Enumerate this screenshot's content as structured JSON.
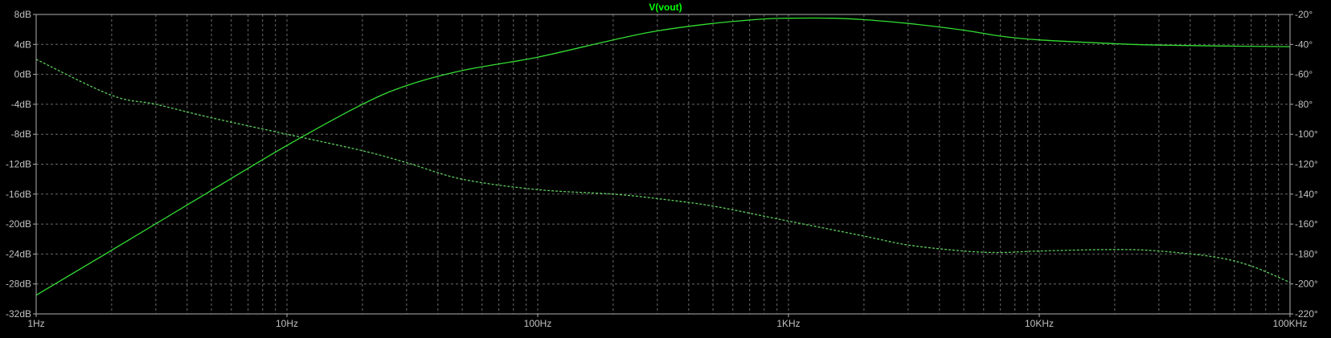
{
  "chart_data": {
    "type": "line",
    "title": "V(vout)",
    "xscale": "log",
    "xlim": [
      1,
      100000
    ],
    "x_ticks": [
      1,
      10,
      100,
      1000,
      10000,
      100000
    ],
    "x_tick_labels": [
      "1Hz",
      "10Hz",
      "100Hz",
      "1KHz",
      "10KHz",
      "100KHz"
    ],
    "y_left": {
      "lim": [
        -32,
        8
      ],
      "ticks": [
        8,
        4,
        0,
        -4,
        -8,
        -12,
        -16,
        -20,
        -24,
        -28,
        -32
      ],
      "tick_labels": [
        "8dB",
        "4dB",
        "0dB",
        "-4dB",
        "-8dB",
        "-12dB",
        "-16dB",
        "-20dB",
        "-24dB",
        "-28dB",
        "-32dB"
      ]
    },
    "y_right": {
      "lim": [
        -220,
        -20
      ],
      "ticks": [
        -20,
        -40,
        -60,
        -80,
        -100,
        -120,
        -140,
        -160,
        -180,
        -200,
        -220
      ],
      "tick_labels": [
        "-20°",
        "-40°",
        "-60°",
        "-80°",
        "-100°",
        "-120°",
        "-140°",
        "-160°",
        "-180°",
        "-200°",
        "-220°"
      ]
    },
    "grid": true,
    "series": [
      {
        "name": "V(vout)",
        "axis": "left",
        "style": "solid",
        "x": [
          1,
          2,
          5,
          10,
          20,
          30,
          50,
          100,
          200,
          300,
          500,
          800,
          1000,
          1500,
          2000,
          3000,
          5000,
          7000,
          10000,
          20000,
          30000,
          50000,
          100000
        ],
        "y": [
          -29.5,
          -23.5,
          -15.5,
          -9.5,
          -4.0,
          -1.5,
          0.5,
          2.3,
          4.6,
          5.8,
          6.8,
          7.4,
          7.5,
          7.5,
          7.3,
          6.8,
          5.9,
          5.1,
          4.6,
          4.1,
          3.9,
          3.8,
          3.7
        ]
      },
      {
        "name": "phase",
        "axis": "right",
        "style": "dashed",
        "x": [
          1,
          2,
          3,
          5,
          10,
          20,
          30,
          50,
          100,
          200,
          300,
          500,
          1000,
          2000,
          3000,
          5000,
          7000,
          10000,
          20000,
          30000,
          50000,
          70000,
          100000
        ],
        "y": [
          -50,
          -74,
          -80,
          -89,
          -100,
          -111,
          -119,
          -130,
          -137,
          -140,
          -143,
          -148,
          -158,
          -168,
          -174,
          -178,
          -179,
          -178,
          -177,
          -178,
          -182,
          -188,
          -199
        ]
      }
    ]
  },
  "colors": {
    "background": "#000000",
    "trace": "#33dd33",
    "trace_phase": "#5acc5a",
    "grid": "#6a6a6a",
    "frame": "#b0b0b0",
    "title": "#00ff00",
    "tick_text": "#c0c0c0"
  }
}
